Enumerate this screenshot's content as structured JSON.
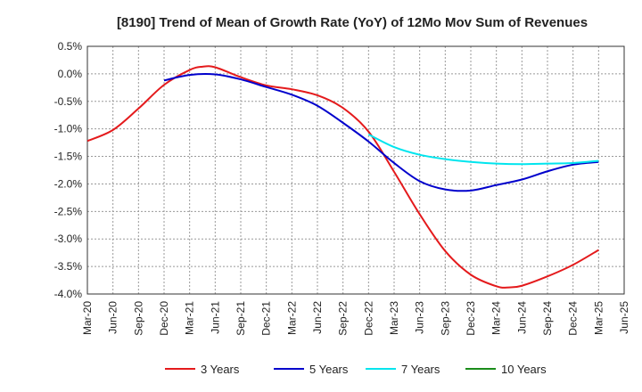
{
  "chart_data": {
    "type": "line",
    "title": "[8190]  Trend of Mean of Growth Rate (YoY) of 12Mo Mov Sum of Revenues",
    "xlabel": "",
    "ylabel": "",
    "x_ticks": [
      "Mar-20",
      "Jun-20",
      "Sep-20",
      "Dec-20",
      "Mar-21",
      "Jun-21",
      "Sep-21",
      "Dec-21",
      "Mar-22",
      "Jun-22",
      "Sep-22",
      "Dec-22",
      "Mar-23",
      "Jun-23",
      "Sep-23",
      "Dec-23",
      "Mar-24",
      "Jun-24",
      "Sep-24",
      "Dec-24",
      "Mar-25",
      "Jun-25"
    ],
    "y_ticks": [
      "0.5%",
      "0.0%",
      "-0.5%",
      "-1.0%",
      "-1.5%",
      "-2.0%",
      "-2.5%",
      "-3.0%",
      "-3.5%",
      "-4.0%"
    ],
    "y_tick_values": [
      0.5,
      0.0,
      -0.5,
      -1.0,
      -1.5,
      -2.0,
      -2.5,
      -3.0,
      -3.5,
      -4.0
    ],
    "ylim": [
      -4.0,
      0.5
    ],
    "xlim": [
      0,
      21
    ],
    "grid": true,
    "legend_position": "bottom",
    "series": [
      {
        "name": "3 Years",
        "color": "#e41a1c",
        "x": [
          0,
          1,
          2,
          3,
          4,
          4.5,
          5,
          6,
          7,
          8,
          9,
          10,
          11,
          12,
          13,
          14,
          15,
          16,
          16.5,
          17,
          18,
          19,
          20
        ],
        "values": [
          -1.22,
          -1.02,
          -0.63,
          -0.2,
          0.07,
          0.13,
          0.12,
          -0.06,
          -0.21,
          -0.28,
          -0.39,
          -0.62,
          -1.05,
          -1.78,
          -2.55,
          -3.22,
          -3.65,
          -3.86,
          -3.88,
          -3.85,
          -3.68,
          -3.47,
          -3.2
        ]
      },
      {
        "name": "5 Years",
        "color": "#0000cc",
        "x": [
          3,
          4,
          5,
          6,
          7,
          8,
          9,
          10,
          11,
          12,
          13,
          14,
          15,
          16,
          17,
          18,
          19,
          20
        ],
        "values": [
          -0.12,
          -0.02,
          -0.01,
          -0.1,
          -0.24,
          -0.38,
          -0.58,
          -0.89,
          -1.23,
          -1.62,
          -1.95,
          -2.1,
          -2.12,
          -2.02,
          -1.92,
          -1.77,
          -1.65,
          -1.6
        ]
      },
      {
        "name": "7 Years",
        "color": "#00e5ee",
        "x": [
          11,
          12,
          13,
          14,
          15,
          16,
          17,
          18,
          19,
          20
        ],
        "values": [
          -1.1,
          -1.33,
          -1.47,
          -1.55,
          -1.6,
          -1.63,
          -1.64,
          -1.63,
          -1.62,
          -1.58
        ]
      },
      {
        "name": "10 Years",
        "color": "#1a8c1a",
        "x": [],
        "values": []
      }
    ]
  }
}
